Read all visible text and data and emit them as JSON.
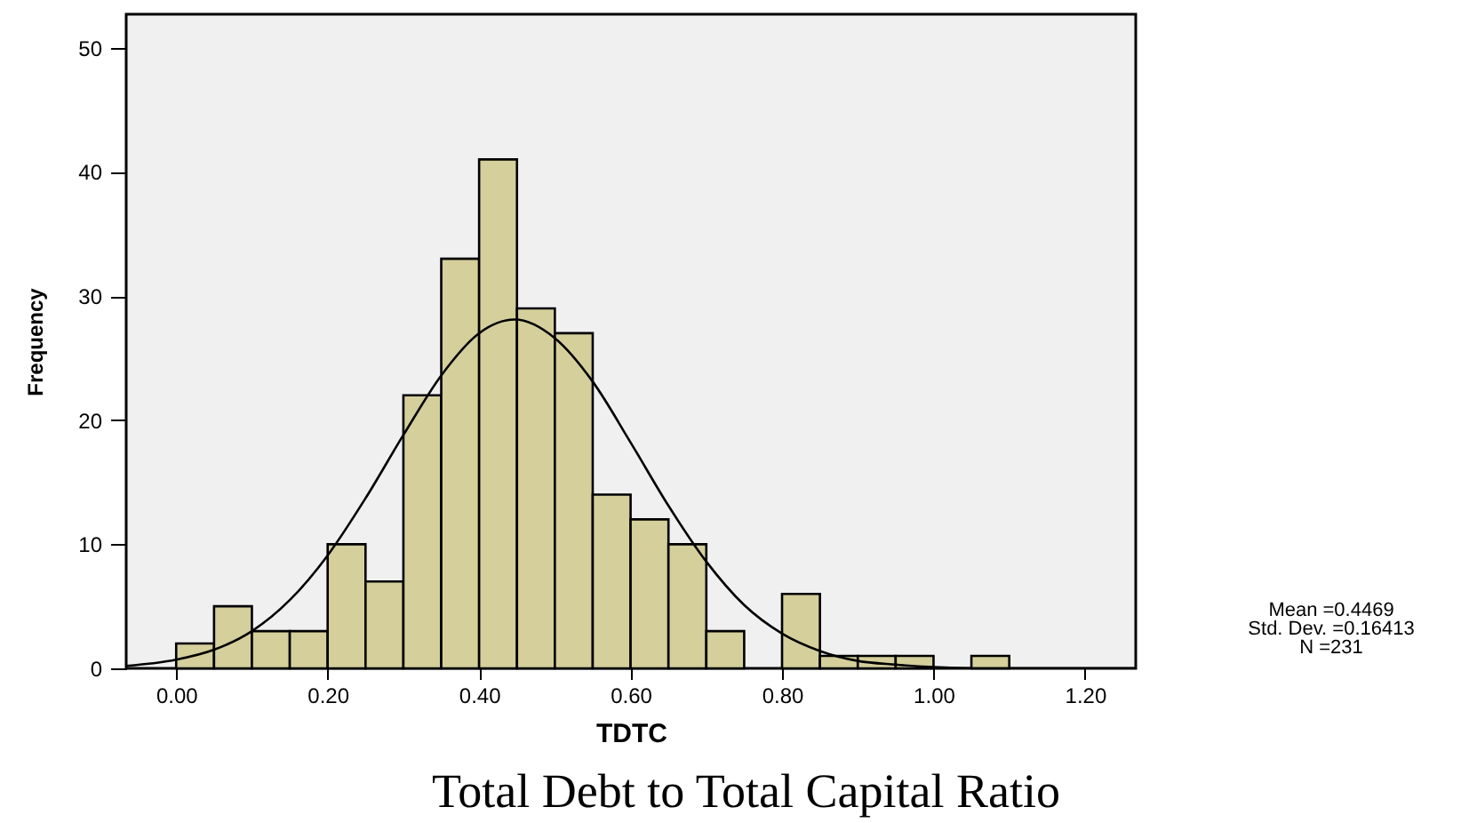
{
  "chart_data": {
    "type": "histogram",
    "title": "Total Debt to Total Capital Ratio",
    "xlabel": "TDTC",
    "ylabel": "Frequency",
    "annotations": [
      "Mean =0.4469",
      "Std. Dev. =0.16413",
      "N =231"
    ],
    "bins": [
      0,
      0.05,
      0.1,
      0.15,
      0.2,
      0.25,
      0.3,
      0.35,
      0.4,
      0.45,
      0.5,
      0.55,
      0.6,
      0.65,
      0.7,
      0.75,
      0.8,
      0.85,
      0.9,
      0.95,
      1.0,
      1.05,
      1.1
    ],
    "series": [
      {
        "type": "histogram",
        "color": "#d4cf9b",
        "values": [
          2,
          5,
          3,
          3,
          10,
          7,
          22,
          33,
          41,
          29,
          27,
          14,
          12,
          10,
          3,
          0,
          6,
          1,
          1,
          1,
          0,
          1
        ]
      },
      {
        "type": "line",
        "color": "#000000",
        "x": [
          -0.066,
          0,
          0.05,
          0.1,
          0.15,
          0.2,
          0.25,
          0.3,
          0.35,
          0.4,
          0.447,
          0.5,
          0.55,
          0.6,
          0.65,
          0.7,
          0.75,
          0.8,
          0.85,
          0.9,
          0.95,
          1.0,
          1.05,
          1.267
        ],
        "values": [
          0.2,
          0.7,
          1.5,
          3.0,
          5.5,
          9.1,
          13.7,
          18.8,
          23.6,
          27.0,
          28.1,
          26.6,
          23.1,
          18.2,
          13.1,
          8.6,
          5.1,
          2.8,
          1.4,
          0.6,
          0.3,
          0.1,
          0.0,
          0.0
        ]
      }
    ],
    "xlim": [
      -0.066,
      1.267
    ],
    "ylim": [
      0,
      52.7
    ],
    "xticks": [
      {
        "value": 0,
        "label": "0.00"
      },
      {
        "value": 0.2,
        "label": "0.20"
      },
      {
        "value": 0.4,
        "label": "0.40"
      },
      {
        "value": 0.6,
        "label": "0.60"
      },
      {
        "value": 0.8,
        "label": "0.80"
      },
      {
        "value": 1.0,
        "label": "1.00"
      },
      {
        "value": 1.2,
        "label": "1.20"
      }
    ],
    "yticks": [
      0,
      10,
      20,
      30,
      40,
      50
    ]
  }
}
